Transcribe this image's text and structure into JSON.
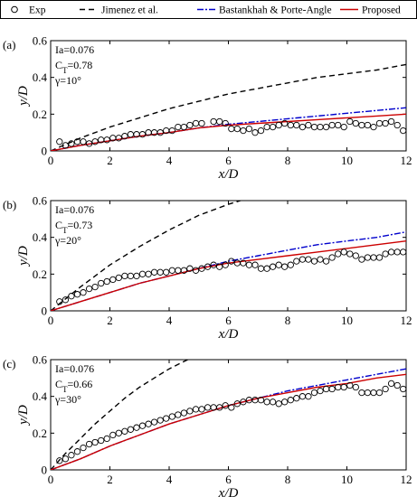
{
  "legend": {
    "items": [
      {
        "key": "exp",
        "label": "Exp",
        "kind": "marker"
      },
      {
        "key": "jimenez",
        "label": "Jimenez et al.",
        "kind": "line",
        "color": "#000000",
        "dash": "6,4"
      },
      {
        "key": "bastankhah",
        "label": "Bastankhah & Porte-Angle",
        "kind": "line",
        "color": "#0000cc",
        "dash": "7,2,2,2"
      },
      {
        "key": "proposed",
        "label": "Proposed",
        "kind": "line",
        "color": "#cc0000",
        "dash": ""
      }
    ]
  },
  "chart_data": [
    {
      "type": "line",
      "panel_label": "(a)",
      "xlabel": "x/D",
      "ylabel": "y/D",
      "xlim": [
        0,
        12
      ],
      "ylim": [
        0,
        0.6
      ],
      "xticks": [
        "0",
        "2",
        "4",
        "6",
        "8",
        "10",
        "12"
      ],
      "yticks": [
        "0",
        "0.2",
        "0.4",
        "0.6"
      ],
      "params": [
        "Ia=0.076",
        "C_T=0.78",
        "γ=10°"
      ],
      "exp": {
        "x": [
          0.3,
          0.5,
          0.7,
          0.9,
          1.1,
          1.3,
          1.5,
          1.7,
          1.9,
          2.1,
          2.3,
          2.5,
          2.7,
          2.9,
          3.1,
          3.3,
          3.5,
          3.7,
          3.9,
          4.1,
          4.3,
          4.5,
          4.7,
          4.9,
          5.1,
          5.5,
          5.7,
          5.9,
          6.1,
          6.3,
          6.5,
          6.7,
          6.9,
          7.1,
          7.3,
          7.5,
          7.7,
          7.9,
          8.1,
          8.3,
          8.5,
          8.7,
          8.9,
          9.1,
          9.3,
          9.5,
          9.7,
          9.9,
          10.1,
          10.3,
          10.5,
          10.7,
          10.9,
          11.1,
          11.3,
          11.5,
          11.7,
          11.9
        ],
        "y": [
          0.05,
          0.03,
          0.04,
          0.05,
          0.05,
          0.04,
          0.05,
          0.06,
          0.06,
          0.07,
          0.07,
          0.08,
          0.09,
          0.09,
          0.09,
          0.1,
          0.1,
          0.1,
          0.11,
          0.11,
          0.13,
          0.13,
          0.14,
          0.15,
          0.15,
          0.16,
          0.16,
          0.15,
          0.12,
          0.12,
          0.11,
          0.12,
          0.1,
          0.11,
          0.13,
          0.13,
          0.14,
          0.15,
          0.14,
          0.14,
          0.13,
          0.14,
          0.13,
          0.13,
          0.13,
          0.14,
          0.14,
          0.13,
          0.16,
          0.15,
          0.14,
          0.14,
          0.13,
          0.15,
          0.15,
          0.16,
          0.14,
          0.11
        ]
      },
      "series": [
        {
          "key": "jimenez",
          "x": [
            0,
            1,
            2,
            3,
            4,
            5,
            6,
            7,
            8,
            9,
            10,
            11,
            12
          ],
          "y": [
            0.0,
            0.07,
            0.13,
            0.18,
            0.23,
            0.27,
            0.31,
            0.34,
            0.37,
            0.4,
            0.42,
            0.44,
            0.47
          ]
        },
        {
          "key": "bastankhah",
          "x": [
            0,
            1,
            2,
            3,
            4,
            5,
            6,
            7,
            8,
            9,
            10,
            11,
            12
          ],
          "y": [
            0.0,
            0.03,
            0.055,
            0.08,
            0.1,
            0.125,
            0.145,
            0.16,
            0.175,
            0.19,
            0.205,
            0.22,
            0.235
          ]
        },
        {
          "key": "proposed",
          "x": [
            0,
            1,
            2,
            3,
            4,
            5,
            6,
            7,
            8,
            9,
            10,
            11,
            12
          ],
          "y": [
            0.0,
            0.03,
            0.055,
            0.08,
            0.1,
            0.125,
            0.14,
            0.15,
            0.16,
            0.17,
            0.18,
            0.19,
            0.2
          ]
        }
      ]
    },
    {
      "type": "line",
      "panel_label": "(b)",
      "xlabel": "x/D",
      "ylabel": "y/D",
      "xlim": [
        0,
        12
      ],
      "ylim": [
        0,
        0.6
      ],
      "xticks": [
        "0",
        "2",
        "4",
        "6",
        "8",
        "10",
        "12"
      ],
      "yticks": [
        "0",
        "0.2",
        "0.4",
        "0.6"
      ],
      "params": [
        "Ia=0.076",
        "C_T=0.73",
        "γ=20°"
      ],
      "exp": {
        "x": [
          0.3,
          0.5,
          0.7,
          0.9,
          1.1,
          1.3,
          1.5,
          1.7,
          1.9,
          2.1,
          2.3,
          2.5,
          2.7,
          2.9,
          3.1,
          3.3,
          3.5,
          3.7,
          3.9,
          4.1,
          4.3,
          4.5,
          4.7,
          4.9,
          5.1,
          5.3,
          5.5,
          5.7,
          5.9,
          6.1,
          6.3,
          6.5,
          6.7,
          6.9,
          7.1,
          7.3,
          7.5,
          7.7,
          7.9,
          8.1,
          8.3,
          8.5,
          8.7,
          8.9,
          9.1,
          9.3,
          9.5,
          9.7,
          9.9,
          10.1,
          10.3,
          10.5,
          10.7,
          10.9,
          11.1,
          11.3,
          11.5,
          11.7,
          11.9
        ],
        "y": [
          0.05,
          0.06,
          0.08,
          0.09,
          0.1,
          0.12,
          0.13,
          0.15,
          0.16,
          0.17,
          0.18,
          0.19,
          0.19,
          0.19,
          0.2,
          0.2,
          0.21,
          0.21,
          0.21,
          0.22,
          0.22,
          0.22,
          0.23,
          0.22,
          0.23,
          0.24,
          0.25,
          0.24,
          0.25,
          0.27,
          0.26,
          0.26,
          0.25,
          0.25,
          0.23,
          0.23,
          0.24,
          0.25,
          0.24,
          0.25,
          0.27,
          0.28,
          0.28,
          0.27,
          0.28,
          0.27,
          0.29,
          0.31,
          0.32,
          0.31,
          0.3,
          0.28,
          0.29,
          0.29,
          0.29,
          0.31,
          0.32,
          0.32,
          0.32
        ]
      },
      "series": [
        {
          "key": "jimenez",
          "x": [
            0,
            1,
            2,
            3,
            4,
            5,
            6,
            7
          ],
          "y": [
            0.0,
            0.13,
            0.25,
            0.35,
            0.44,
            0.52,
            0.58,
            0.63
          ]
        },
        {
          "key": "bastankhah",
          "x": [
            0,
            1,
            2,
            3,
            4,
            5,
            6,
            7,
            8,
            9,
            10,
            11,
            12
          ],
          "y": [
            0.0,
            0.05,
            0.1,
            0.15,
            0.19,
            0.23,
            0.27,
            0.3,
            0.33,
            0.36,
            0.38,
            0.4,
            0.43
          ]
        },
        {
          "key": "proposed",
          "x": [
            0,
            1,
            2,
            3,
            4,
            5,
            6,
            7,
            8,
            9,
            10,
            11,
            12
          ],
          "y": [
            0.0,
            0.05,
            0.1,
            0.15,
            0.19,
            0.23,
            0.26,
            0.28,
            0.3,
            0.32,
            0.34,
            0.36,
            0.38
          ]
        }
      ]
    },
    {
      "type": "line",
      "panel_label": "(c)",
      "xlabel": "x/D",
      "ylabel": "y/D",
      "xlim": [
        0,
        12
      ],
      "ylim": [
        0,
        0.6
      ],
      "xticks": [
        "0",
        "2",
        "4",
        "6",
        "8",
        "10",
        "12"
      ],
      "yticks": [
        "0",
        "0.2",
        "0.4",
        "0.6"
      ],
      "params": [
        "Ia=0.076",
        "C_T=0.66",
        "γ=30°"
      ],
      "exp": {
        "x": [
          0.3,
          0.5,
          0.7,
          0.9,
          1.1,
          1.3,
          1.5,
          1.7,
          1.9,
          2.1,
          2.3,
          2.5,
          2.7,
          2.9,
          3.1,
          3.3,
          3.5,
          3.7,
          3.9,
          4.1,
          4.3,
          4.5,
          4.7,
          4.9,
          5.1,
          5.3,
          5.5,
          5.7,
          5.9,
          6.1,
          6.3,
          6.5,
          6.7,
          6.9,
          7.1,
          7.3,
          7.5,
          7.7,
          7.9,
          8.1,
          8.3,
          8.5,
          8.7,
          8.9,
          9.1,
          9.3,
          9.5,
          9.7,
          9.9,
          10.1,
          10.3,
          10.5,
          10.7,
          10.9,
          11.1,
          11.3,
          11.5,
          11.7,
          11.9
        ],
        "y": [
          0.05,
          0.06,
          0.08,
          0.1,
          0.12,
          0.14,
          0.15,
          0.16,
          0.17,
          0.19,
          0.2,
          0.21,
          0.22,
          0.23,
          0.24,
          0.25,
          0.26,
          0.27,
          0.28,
          0.29,
          0.3,
          0.31,
          0.32,
          0.33,
          0.33,
          0.34,
          0.34,
          0.34,
          0.35,
          0.34,
          0.36,
          0.37,
          0.38,
          0.38,
          0.38,
          0.37,
          0.37,
          0.36,
          0.37,
          0.38,
          0.39,
          0.4,
          0.4,
          0.42,
          0.43,
          0.44,
          0.44,
          0.45,
          0.45,
          0.46,
          0.45,
          0.42,
          0.42,
          0.42,
          0.42,
          0.44,
          0.47,
          0.46,
          0.44
        ]
      },
      "series": [
        {
          "key": "jimenez",
          "x": [
            0,
            0.5,
            1,
            1.5,
            2,
            2.5,
            3,
            3.5,
            4,
            4.5,
            5
          ],
          "y": [
            0.0,
            0.09,
            0.17,
            0.25,
            0.32,
            0.39,
            0.45,
            0.5,
            0.55,
            0.59,
            0.63
          ]
        },
        {
          "key": "bastankhah",
          "x": [
            0,
            1,
            2,
            3,
            4,
            5,
            6,
            7,
            8,
            9,
            10,
            11,
            12
          ],
          "y": [
            0.0,
            0.06,
            0.13,
            0.19,
            0.25,
            0.3,
            0.35,
            0.39,
            0.43,
            0.46,
            0.49,
            0.52,
            0.55
          ]
        },
        {
          "key": "proposed",
          "x": [
            0,
            1,
            2,
            3,
            4,
            5,
            6,
            7,
            8,
            9,
            10,
            11,
            12
          ],
          "y": [
            0.0,
            0.06,
            0.13,
            0.19,
            0.25,
            0.3,
            0.35,
            0.39,
            0.42,
            0.45,
            0.47,
            0.5,
            0.52
          ]
        }
      ]
    }
  ]
}
